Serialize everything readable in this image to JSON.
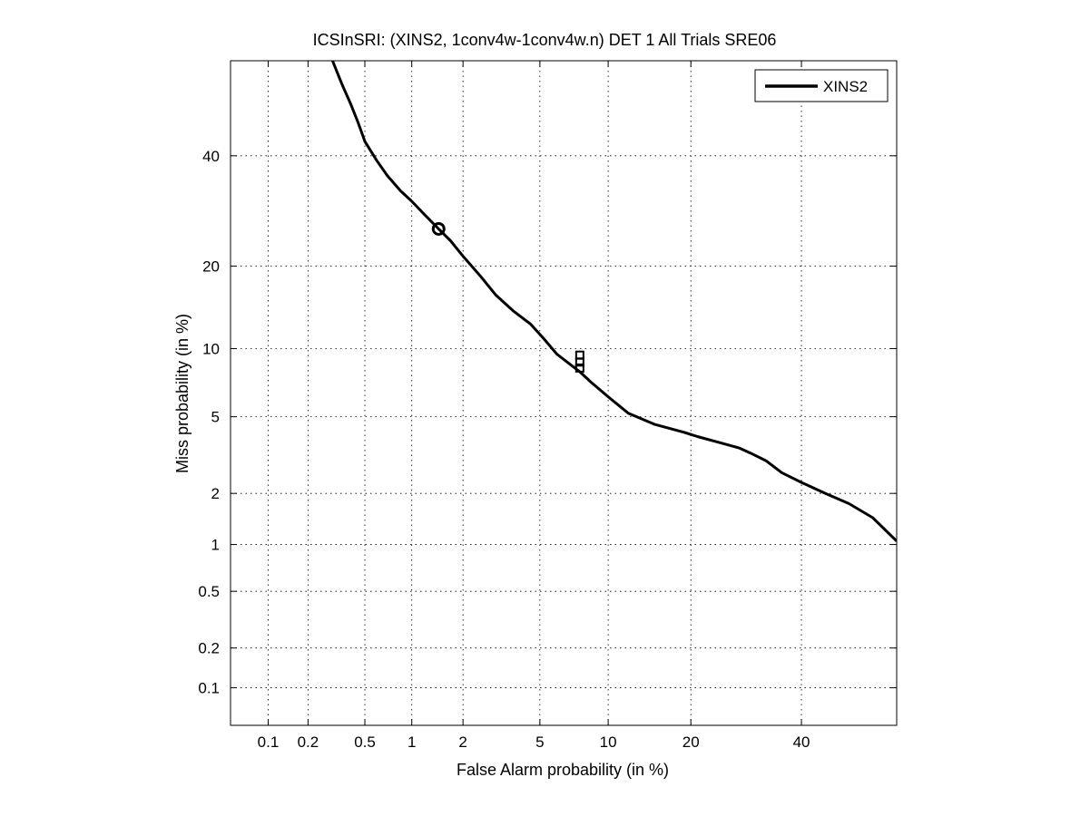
{
  "chart_data": {
    "type": "line",
    "title": "ICSInSRI: (XINS2, 1conv4w-1conv4w.n) DET 1 All Trials SRE06",
    "xlabel": "False Alarm probability (in %)",
    "ylabel": "Miss probability (in %)",
    "scale": "normal-deviate (probit)",
    "xlim": [
      0.05,
      60
    ],
    "ylim": [
      0.05,
      60
    ],
    "grid": true,
    "grid_style": "dotted",
    "legend_position": "top-right",
    "x_ticks": [
      0.1,
      0.2,
      0.5,
      1,
      2,
      5,
      10,
      20,
      40
    ],
    "x_tick_labels": [
      "0.1",
      "0.2",
      "0.5",
      "1",
      "2",
      "5",
      "10",
      "20",
      "40"
    ],
    "y_ticks": [
      0.1,
      0.2,
      0.5,
      1,
      2,
      5,
      10,
      20,
      40
    ],
    "y_tick_labels": [
      "0.1",
      "0.2",
      "0.5",
      "1",
      "2",
      "5",
      "10",
      "20",
      "40"
    ],
    "series": [
      {
        "name": "XINS2",
        "color": "#000000",
        "x": [
          0.3,
          0.35,
          0.4,
          0.45,
          0.5,
          0.6,
          0.7,
          0.85,
          1.0,
          1.2,
          1.45,
          1.7,
          2.0,
          2.5,
          3.0,
          3.7,
          4.5,
          5.2,
          6.0,
          7.0,
          7.6,
          8.5,
          10.0,
          12.0,
          15.0,
          19.0,
          21.0,
          25.0,
          28.0,
          30.0,
          33.0,
          36.0,
          40.0,
          45.0,
          50.0,
          55.0,
          60.0
        ],
        "y": [
          60,
          55,
          51,
          47,
          43,
          39,
          36,
          33,
          31,
          28.5,
          26,
          24,
          21.5,
          18.5,
          16,
          14,
          12.5,
          11,
          9.5,
          8.5,
          8.0,
          7.2,
          6.2,
          5.2,
          4.6,
          4.2,
          4.0,
          3.7,
          3.5,
          3.3,
          3.0,
          2.6,
          2.3,
          2.0,
          1.75,
          1.45,
          1.05
        ]
      }
    ],
    "markers": [
      {
        "shape": "circle",
        "x": 1.45,
        "y": 26
      },
      {
        "shape": "square",
        "x": 7.6,
        "y": 8.8
      },
      {
        "shape": "square",
        "x": 7.6,
        "y": 9.4
      },
      {
        "shape": "square",
        "x": 7.6,
        "y": 8.3
      }
    ]
  }
}
